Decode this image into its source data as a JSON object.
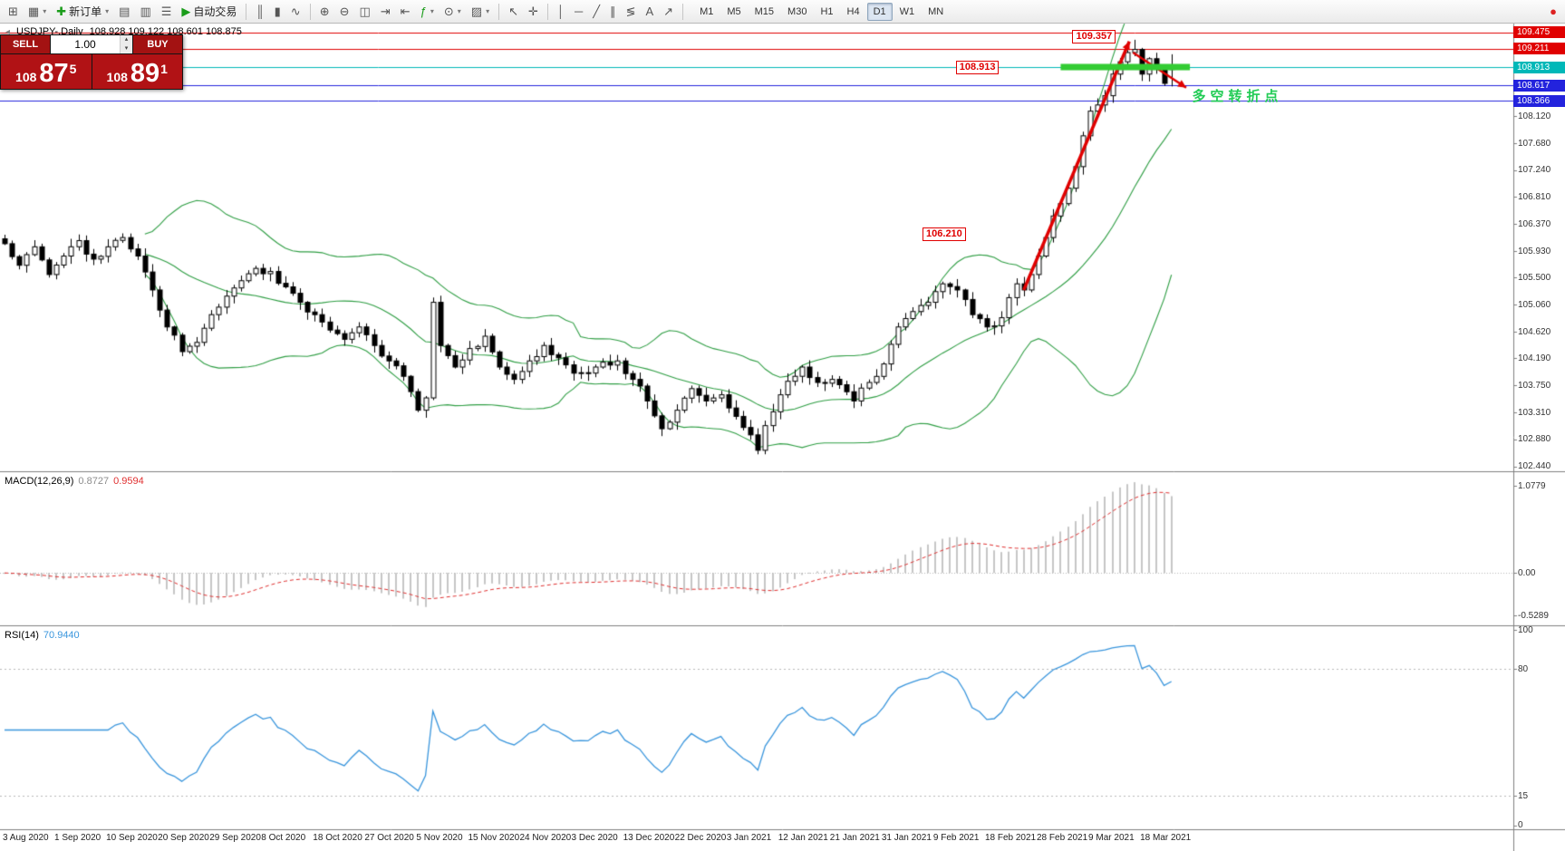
{
  "toolbar": {
    "items": [
      {
        "type": "icon",
        "name": "new-chart-icon",
        "glyph": "⊞"
      },
      {
        "type": "icon",
        "name": "profiles-icon",
        "glyph": "▦",
        "caret": true
      },
      {
        "type": "labeled",
        "name": "new-order-button",
        "glyph": "✚",
        "glyph_color": "#1a9c1a",
        "label": "新订单",
        "caret": true
      },
      {
        "type": "icon",
        "name": "market-watch-icon",
        "glyph": "▤"
      },
      {
        "type": "icon",
        "name": "data-window-icon",
        "glyph": "▥"
      },
      {
        "type": "icon",
        "name": "navigator-icon",
        "glyph": "☰"
      },
      {
        "type": "labeled",
        "name": "auto-trading-button",
        "glyph": "▶",
        "glyph_color": "#1a9c1a",
        "label": "自动交易"
      },
      {
        "type": "sep"
      },
      {
        "type": "icon",
        "name": "bar-chart-icon",
        "glyph": "║"
      },
      {
        "type": "icon",
        "name": "candlestick-chart-icon",
        "glyph": "▮"
      },
      {
        "type": "icon",
        "name": "line-chart-icon",
        "glyph": "∿"
      },
      {
        "type": "sep"
      },
      {
        "type": "icon",
        "name": "zoom-in-icon",
        "glyph": "⊕"
      },
      {
        "type": "icon",
        "name": "zoom-out-icon",
        "glyph": "⊖"
      },
      {
        "type": "icon",
        "name": "tile-windows-icon",
        "glyph": "◫"
      },
      {
        "type": "icon",
        "name": "auto-scroll-icon",
        "glyph": "⇥"
      },
      {
        "type": "icon",
        "name": "chart-shift-icon",
        "glyph": "⇤"
      },
      {
        "type": "icon",
        "name": "indicators-icon",
        "glyph": "ƒ",
        "glyph_color": "#1a9c1a",
        "caret": true
      },
      {
        "type": "icon",
        "name": "periods-icon",
        "glyph": "⊙",
        "caret": true
      },
      {
        "type": "icon",
        "name": "templates-icon",
        "glyph": "▨",
        "caret": true
      },
      {
        "type": "sep"
      },
      {
        "type": "icon",
        "name": "cursor-icon",
        "glyph": "↖"
      },
      {
        "type": "icon",
        "name": "crosshair-icon",
        "glyph": "✛"
      },
      {
        "type": "sep"
      },
      {
        "type": "icon",
        "name": "vertical-line-icon",
        "glyph": "│"
      },
      {
        "type": "icon",
        "name": "horizontal-line-icon",
        "glyph": "─"
      },
      {
        "type": "icon",
        "name": "trendline-icon",
        "glyph": "╱"
      },
      {
        "type": "icon",
        "name": "channel-icon",
        "glyph": "∥"
      },
      {
        "type": "icon",
        "name": "fibonacci-icon",
        "glyph": "≶"
      },
      {
        "type": "icon",
        "name": "text-icon",
        "glyph": "A"
      },
      {
        "type": "icon",
        "name": "arrows-icon",
        "glyph": "↗"
      },
      {
        "type": "sep"
      },
      {
        "type": "tf"
      },
      {
        "type": "icon",
        "name": "red-circle-icon",
        "glyph": "●",
        "glyph_color": "#d22",
        "right": true
      }
    ],
    "timeframes": [
      "M1",
      "M5",
      "M15",
      "M30",
      "H1",
      "H4",
      "D1",
      "W1",
      "MN"
    ],
    "active_timeframe": "D1"
  },
  "trade_widget": {
    "sell_label": "SELL",
    "buy_label": "BUY",
    "volume": "1.00",
    "spin_up_icon": "▴",
    "spin_down_icon": "▾",
    "sell_price": {
      "prefix": "108",
      "big": "87",
      "sup": "5"
    },
    "buy_price": {
      "prefix": "108",
      "big": "89",
      "sup": "1"
    }
  },
  "chart": {
    "header": {
      "collapse_icon": "◂",
      "symbol": "USDJPY-,Daily",
      "ohlc": "108.928 109.122 108.601 108.875"
    },
    "annotations": {
      "peak_label": {
        "text": "109.357",
        "day": 144.6,
        "price": 109.42
      },
      "level_label": {
        "text": "108.913",
        "day": 128.8,
        "price": 108.913
      },
      "support_label": {
        "text": "106.210",
        "day": 124.3,
        "price": 106.21
      },
      "cn_note": {
        "text": "多空转折点",
        "day": 160.8,
        "price": 108.48
      },
      "green_segment": {
        "price": 108.913,
        "day_from": 143,
        "day_to": 160.5,
        "width": 7
      },
      "arrow_up": {
        "from_day": 138,
        "from_price": 105.3,
        "to_day": 152.3,
        "to_price": 109.33,
        "width": 3.5
      },
      "arrow_down": {
        "from_day": 152.8,
        "from_price": 109.15,
        "to_day": 160,
        "to_price": 108.58,
        "width": 2.5
      }
    }
  },
  "macd_panel": {
    "label": "MACD(12,26,9)",
    "main_value": "0.8727",
    "signal_value": "0.9594",
    "scale": [
      {
        "text": "1.0779",
        "value": 1.0779
      },
      {
        "text": "0.00",
        "value": 0
      },
      {
        "text": "-0.5289",
        "value": -0.5289
      }
    ]
  },
  "rsi_panel": {
    "label": "RSI(14)",
    "value": "70.9440",
    "scale": [
      {
        "text": "100",
        "value": 100
      },
      {
        "text": "80",
        "value": 80
      },
      {
        "text": "15",
        "value": 15
      },
      {
        "text": "0",
        "value": 0
      }
    ],
    "levels": [
      80,
      15
    ]
  },
  "colors": {
    "bull": "#ffffff",
    "bear": "#000000",
    "outline": "#000000",
    "band": "#2f9e44",
    "macd_hist": "#b8b8b8",
    "macd_signal": "#e03030",
    "rsi_line": "#3a96dd",
    "annotation_red": "#e00000",
    "green_segment": "#33cc33",
    "cn_green": "#22cc55",
    "grid_dotted": "#b8b8b8",
    "scale_border": "#808080"
  },
  "chart_data": {
    "type": "candlestick",
    "title": "USDJPY-,Daily",
    "current_ohlc": {
      "open": 108.928,
      "high": 109.122,
      "low": 108.601,
      "close": 108.875
    },
    "peak": {
      "day": 153,
      "high": 109.357
    },
    "num_candles": 159,
    "candles_per_x_label": 7,
    "x_labels": [
      "3 Aug 2020",
      "1 Sep 2020",
      "10 Sep 2020",
      "20 Sep 2020",
      "29 Sep 2020",
      "8 Oct 2020",
      "18 Oct 2020",
      "27 Oct 2020",
      "5 Nov 2020",
      "15 Nov 2020",
      "24 Nov 2020",
      "3 Dec 2020",
      "13 Dec 2020",
      "22 Dec 2020",
      "3 Jan 2021",
      "12 Jan 2021",
      "21 Jan 2021",
      "31 Jan 2021",
      "9 Feb 2021",
      "18 Feb 2021",
      "28 Feb 2021",
      "9 Mar 2021",
      "18 Mar 2021"
    ],
    "y_range": [
      102.36,
      109.62
    ],
    "y_ticks": [
      108.12,
      107.68,
      107.24,
      106.81,
      106.37,
      105.93,
      105.5,
      105.06,
      104.62,
      104.19,
      103.75,
      103.31,
      102.88,
      102.44
    ],
    "horizontal_lines": [
      {
        "price": 109.475,
        "color": "#e00000"
      },
      {
        "price": 109.211,
        "color": "#e00000"
      },
      {
        "price": 108.913,
        "color": "#00b8b8"
      },
      {
        "price": 108.617,
        "color": "#2323dd"
      },
      {
        "price": 108.366,
        "color": "#2323dd"
      }
    ],
    "price_anchors": [
      [
        0,
        106.05
      ],
      [
        2,
        105.7
      ],
      [
        4,
        106.0
      ],
      [
        6,
        105.55
      ],
      [
        8,
        105.85
      ],
      [
        10,
        106.1
      ],
      [
        12,
        105.8
      ],
      [
        14,
        106.0
      ],
      [
        16,
        106.15
      ],
      [
        18,
        105.85
      ],
      [
        20,
        105.3
      ],
      [
        22,
        104.7
      ],
      [
        24,
        104.3
      ],
      [
        26,
        104.45
      ],
      [
        28,
        104.9
      ],
      [
        30,
        105.2
      ],
      [
        32,
        105.45
      ],
      [
        34,
        105.65
      ],
      [
        36,
        105.6
      ],
      [
        38,
        105.35
      ],
      [
        40,
        105.1
      ],
      [
        42,
        104.9
      ],
      [
        44,
        104.65
      ],
      [
        46,
        104.5
      ],
      [
        48,
        104.7
      ],
      [
        50,
        104.4
      ],
      [
        52,
        104.15
      ],
      [
        54,
        103.9
      ],
      [
        56,
        103.35
      ],
      [
        57,
        103.55
      ],
      [
        58,
        105.1
      ],
      [
        59,
        104.4
      ],
      [
        61,
        104.05
      ],
      [
        63,
        104.35
      ],
      [
        65,
        104.55
      ],
      [
        67,
        104.05
      ],
      [
        69,
        103.85
      ],
      [
        71,
        104.15
      ],
      [
        73,
        104.4
      ],
      [
        75,
        104.2
      ],
      [
        77,
        103.95
      ],
      [
        80,
        104.05
      ],
      [
        83,
        104.15
      ],
      [
        85,
        103.85
      ],
      [
        87,
        103.5
      ],
      [
        89,
        103.05
      ],
      [
        91,
        103.35
      ],
      [
        93,
        103.7
      ],
      [
        95,
        103.5
      ],
      [
        97,
        103.6
      ],
      [
        99,
        103.25
      ],
      [
        101,
        102.95
      ],
      [
        102,
        102.7
      ],
      [
        103,
        103.1
      ],
      [
        105,
        103.6
      ],
      [
        107,
        103.9
      ],
      [
        108,
        104.05
      ],
      [
        110,
        103.8
      ],
      [
        112,
        103.85
      ],
      [
        114,
        103.65
      ],
      [
        115,
        103.5
      ],
      [
        117,
        103.8
      ],
      [
        119,
        104.1
      ],
      [
        121,
        104.7
      ],
      [
        123,
        104.95
      ],
      [
        125,
        105.1
      ],
      [
        127,
        105.4
      ],
      [
        129,
        105.3
      ],
      [
        131,
        104.9
      ],
      [
        133,
        104.7
      ],
      [
        135,
        104.85
      ],
      [
        137,
        105.4
      ],
      [
        138,
        105.3
      ],
      [
        139,
        105.55
      ],
      [
        140,
        105.85
      ],
      [
        141,
        106.15
      ],
      [
        142,
        106.5
      ],
      [
        143,
        106.7
      ],
      [
        144,
        106.95
      ],
      [
        145,
        107.3
      ],
      [
        146,
        107.8
      ],
      [
        147,
        108.2
      ],
      [
        148,
        108.3
      ],
      [
        149,
        108.45
      ],
      [
        150,
        108.8
      ],
      [
        151,
        109.0
      ],
      [
        152,
        109.15
      ],
      [
        153,
        109.2
      ],
      [
        154,
        108.8
      ],
      [
        155,
        109.05
      ],
      [
        156,
        108.9
      ],
      [
        157,
        108.65
      ],
      [
        158,
        108.875
      ]
    ],
    "indicators": {
      "bollinger": {
        "period": 20,
        "deviation": 2
      },
      "macd": {
        "fast": 12,
        "slow": 26,
        "signal": 9,
        "last_main": 0.8727,
        "last_signal": 0.9594,
        "display_range": [
          -0.65,
          1.25
        ]
      },
      "rsi": {
        "period": 14,
        "last_value": 70.944,
        "range": [
          0,
          100
        ]
      }
    }
  }
}
